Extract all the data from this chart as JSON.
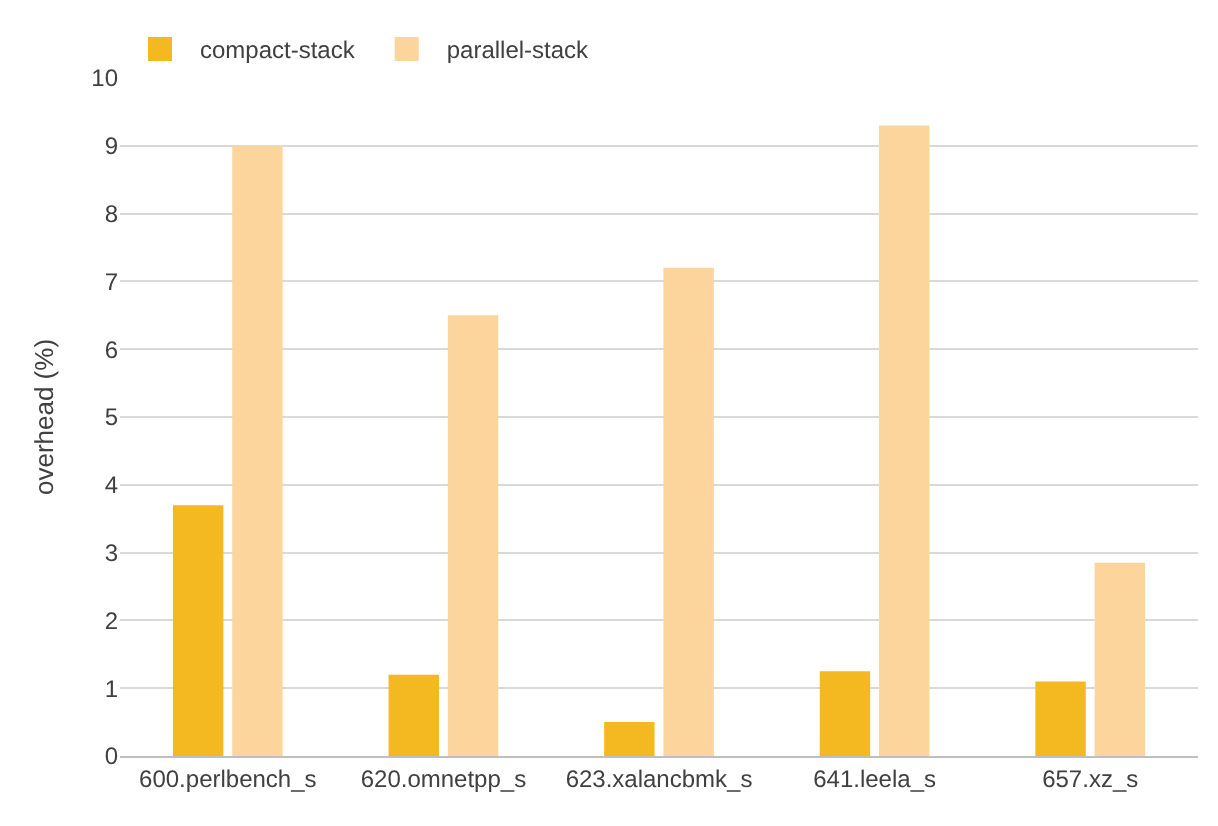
{
  "chart_data": {
    "type": "bar",
    "ylabel": "overhead (%)",
    "categories": [
      "600.perlbench_s",
      "620.omnetpp_s",
      "623.xalancbmk_s",
      "641.leela_s",
      "657.xz_s"
    ],
    "series": [
      {
        "name": "compact-stack",
        "color": "#f4b920",
        "values": [
          3.7,
          1.2,
          0.5,
          1.25,
          1.1
        ]
      },
      {
        "name": "parallel-stack",
        "color": "#fbd59b",
        "values": [
          9.0,
          6.5,
          7.2,
          9.3,
          2.85
        ]
      }
    ],
    "ylim": [
      0,
      10
    ],
    "yticks": [
      0,
      1,
      2,
      3,
      4,
      5,
      6,
      7,
      8,
      9,
      10
    ],
    "grid": "y",
    "legend": "top left"
  }
}
